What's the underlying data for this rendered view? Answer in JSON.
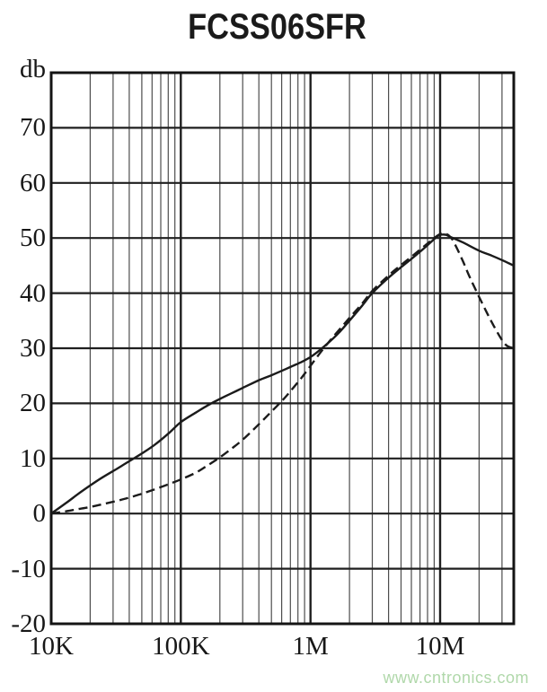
{
  "title": "FCSS06SFR",
  "watermark": {
    "text": "www.cntronics.com",
    "color": "#b0d8aa"
  },
  "chart_data": {
    "type": "line",
    "title": "FCSS06SFR",
    "ylabel": "db",
    "xlabel": "",
    "grid": true,
    "legend": "none",
    "x_axis": {
      "scale": "log",
      "min": 10000,
      "max": 37000000,
      "ticks": [
        {
          "label": "10K",
          "value": 10000
        },
        {
          "label": "100K",
          "value": 100000
        },
        {
          "label": "1M",
          "value": 1000000
        },
        {
          "label": "10M",
          "value": 10000000
        }
      ]
    },
    "y_axis": {
      "min": -20,
      "max": 80,
      "step": 10,
      "ticks": [
        {
          "label": "db",
          "value": 80
        },
        {
          "label": "70",
          "value": 70
        },
        {
          "label": "60",
          "value": 60
        },
        {
          "label": "50",
          "value": 50
        },
        {
          "label": "40",
          "value": 40
        },
        {
          "label": "30",
          "value": 30
        },
        {
          "label": "20",
          "value": 20
        },
        {
          "label": "10",
          "value": 10
        },
        {
          "label": "0",
          "value": 0
        },
        {
          "label": "-10",
          "value": -10
        },
        {
          "label": "-20",
          "value": -20
        }
      ]
    },
    "colors": {
      "line": "#1b1b1b",
      "grid_major": "#1f1f1f",
      "grid_minor": "#4d4d4d",
      "border": "#141414"
    },
    "series": [
      {
        "name": "insertion-loss-solid",
        "style": "solid",
        "points": [
          [
            10000,
            0
          ],
          [
            13000,
            1.9
          ],
          [
            16000,
            3.5
          ],
          [
            20000,
            5.1
          ],
          [
            25000,
            6.6
          ],
          [
            32000,
            8.1
          ],
          [
            40000,
            9.5
          ],
          [
            50000,
            10.9
          ],
          [
            63000,
            12.5
          ],
          [
            80000,
            14.5
          ],
          [
            100000,
            16.6
          ],
          [
            130000,
            18.3
          ],
          [
            160000,
            19.6
          ],
          [
            200000,
            20.8
          ],
          [
            250000,
            21.9
          ],
          [
            300000,
            22.8
          ],
          [
            400000,
            24.2
          ],
          [
            500000,
            25.1
          ],
          [
            600000,
            25.9
          ],
          [
            700000,
            26.6
          ],
          [
            850000,
            27.5
          ],
          [
            1000000,
            28.4
          ],
          [
            1200000,
            29.8
          ],
          [
            1500000,
            31.8
          ],
          [
            1700000,
            33.1
          ],
          [
            2000000,
            35.0
          ],
          [
            2500000,
            37.7
          ],
          [
            3000000,
            40.0
          ],
          [
            4000000,
            42.8
          ],
          [
            5000000,
            44.7
          ],
          [
            6000000,
            46.2
          ],
          [
            7000000,
            47.5
          ],
          [
            8000000,
            48.7
          ],
          [
            9000000,
            49.8
          ],
          [
            9800000,
            50.5
          ],
          [
            11000000,
            50.6
          ],
          [
            12000000,
            50.2
          ],
          [
            15000000,
            49.2
          ],
          [
            20000000,
            47.7
          ],
          [
            25000000,
            46.8
          ],
          [
            30000000,
            46.0
          ],
          [
            37000000,
            45.0
          ]
        ]
      },
      {
        "name": "insertion-loss-dashed",
        "style": "dashed",
        "points": [
          [
            10000,
            0
          ],
          [
            13000,
            0.4
          ],
          [
            16000,
            0.8
          ],
          [
            20000,
            1.2
          ],
          [
            25000,
            1.7
          ],
          [
            32000,
            2.3
          ],
          [
            40000,
            2.9
          ],
          [
            50000,
            3.6
          ],
          [
            63000,
            4.4
          ],
          [
            80000,
            5.3
          ],
          [
            100000,
            6.2
          ],
          [
            130000,
            7.4
          ],
          [
            160000,
            8.7
          ],
          [
            200000,
            10.2
          ],
          [
            250000,
            11.9
          ],
          [
            300000,
            13.4
          ],
          [
            400000,
            16.2
          ],
          [
            500000,
            18.5
          ],
          [
            600000,
            20.4
          ],
          [
            700000,
            22.2
          ],
          [
            850000,
            24.6
          ],
          [
            1000000,
            26.8
          ],
          [
            1200000,
            29.3
          ],
          [
            1500000,
            32.1
          ],
          [
            2000000,
            35.5
          ],
          [
            2500000,
            38.1
          ],
          [
            3000000,
            40.4
          ],
          [
            4000000,
            43.2
          ],
          [
            5000000,
            45.1
          ],
          [
            6000000,
            46.6
          ],
          [
            7000000,
            47.9
          ],
          [
            8000000,
            49.0
          ],
          [
            9000000,
            50.0
          ],
          [
            10000000,
            50.7
          ],
          [
            11000000,
            50.8
          ],
          [
            12000000,
            50.2
          ],
          [
            13000000,
            48.9
          ],
          [
            15000000,
            45.8
          ],
          [
            17000000,
            42.8
          ],
          [
            20000000,
            39.3
          ],
          [
            23000000,
            36.4
          ],
          [
            26000000,
            34.0
          ],
          [
            30000000,
            31.5
          ],
          [
            33000000,
            30.4
          ],
          [
            37000000,
            30.0
          ]
        ]
      }
    ]
  }
}
